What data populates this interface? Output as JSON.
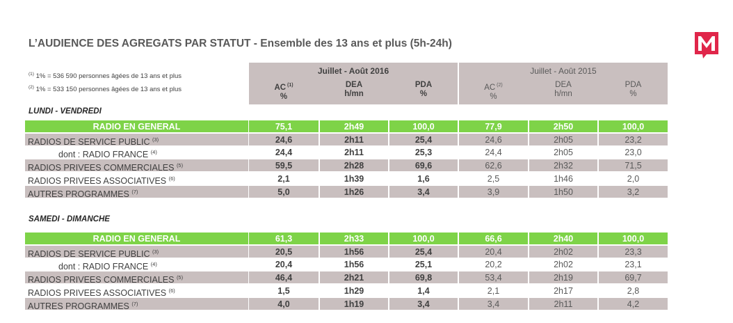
{
  "title": "L’AUDIENCE DES AGREGATS PAR STATUT",
  "subtitle": " - Ensemble des 13 ans et plus (5h-24h)",
  "logo_letter": "M",
  "notes": [
    {
      "sup": "(1)",
      "text": " 1% = 536 590 personnes âgées de 13 ans et plus"
    },
    {
      "sup": "(2)",
      "text": " 1% = 533 150 personnes âgées de 13 ans et plus"
    }
  ],
  "periods": [
    "Juillet - Août 2016",
    "Juillet - Août 2015"
  ],
  "columns": [
    {
      "name": "AC",
      "sup": " (1)",
      "unit": "%"
    },
    {
      "name": "DEA",
      "sup": "",
      "unit": "h/mn"
    },
    {
      "name": "PDA",
      "sup": "",
      "unit": "%"
    },
    {
      "name": "AC",
      "sup": " (2)",
      "unit": "%"
    },
    {
      "name": "DEA",
      "sup": "",
      "unit": "h/mn"
    },
    {
      "name": "PDA",
      "sup": "",
      "unit": "%"
    }
  ],
  "sections": [
    {
      "title": "LUNDI - VENDREDI",
      "rows": [
        {
          "label": "RADIO EN GENERAL",
          "sup": "",
          "values": [
            "75,1",
            "2h49",
            "100,0",
            "77,9",
            "2h50",
            "100,0"
          ]
        },
        {
          "label": "RADIOS DE SERVICE PUBLIC ",
          "sup": "(3)",
          "values": [
            "24,6",
            "2h11",
            "25,4",
            "24,6",
            "2h05",
            "23,2"
          ]
        },
        {
          "label": "dont : RADIO FRANCE ",
          "sup": "(4)",
          "values": [
            "24,4",
            "2h11",
            "25,3",
            "24,4",
            "2h05",
            "23,0"
          ]
        },
        {
          "label": "RADIOS PRIVEES COMMERCIALES ",
          "sup": "(5)",
          "values": [
            "59,5",
            "2h28",
            "69,6",
            "62,6",
            "2h32",
            "71,5"
          ]
        },
        {
          "label": "RADIOS PRIVEES ASSOCIATIVES ",
          "sup": "(6)",
          "values": [
            "2,1",
            "1h39",
            "1,6",
            "2,5",
            "1h46",
            "2,0"
          ]
        },
        {
          "label": "AUTRES PROGRAMMES ",
          "sup": "(7)",
          "values": [
            "5,0",
            "1h26",
            "3,4",
            "3,9",
            "1h50",
            "3,2"
          ]
        }
      ]
    },
    {
      "title": "SAMEDI - DIMANCHE",
      "rows": [
        {
          "label": "RADIO EN GENERAL",
          "sup": "",
          "values": [
            "61,3",
            "2h33",
            "100,0",
            "66,6",
            "2h40",
            "100,0"
          ]
        },
        {
          "label": "RADIOS DE SERVICE PUBLIC ",
          "sup": "(3)",
          "values": [
            "20,5",
            "1h56",
            "25,4",
            "20,4",
            "2h02",
            "23,3"
          ]
        },
        {
          "label": "dont : RADIO FRANCE ",
          "sup": "(4)",
          "values": [
            "20,4",
            "1h56",
            "25,1",
            "20,2",
            "2h02",
            "23,1"
          ]
        },
        {
          "label": "RADIOS PRIVEES COMMERCIALES ",
          "sup": "(5)",
          "values": [
            "46,4",
            "2h21",
            "69,8",
            "53,4",
            "2h19",
            "69,7"
          ]
        },
        {
          "label": "RADIOS PRIVEES ASSOCIATIVES ",
          "sup": "(6)",
          "values": [
            "1,5",
            "1h29",
            "1,4",
            "2,1",
            "2h17",
            "2,8"
          ]
        },
        {
          "label": "AUTRES PROGRAMMES ",
          "sup": "(7)",
          "values": [
            "4,0",
            "1h19",
            "3,4",
            "3,4",
            "2h11",
            "4,2"
          ]
        }
      ]
    }
  ],
  "colors": {
    "general": "#7ed348",
    "grey": "#c9bfbf",
    "logo": "#e0264a"
  }
}
